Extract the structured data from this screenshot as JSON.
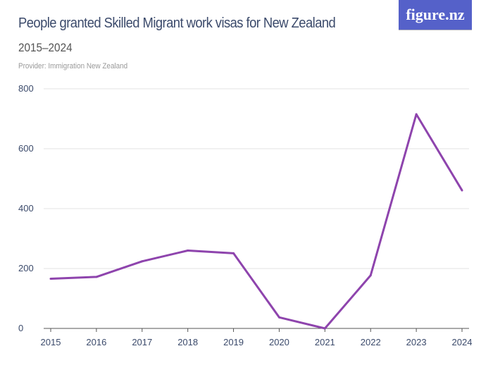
{
  "title": "People granted Skilled Migrant work visas for New Zealand",
  "subtitle": "2015–2024",
  "provider": "Provider: Immigration New Zealand",
  "logo": "figure.nz",
  "chart_data": {
    "type": "line",
    "title": "People granted Skilled Migrant work visas for New Zealand",
    "subtitle": "2015–2024",
    "categories": [
      "2015",
      "2016",
      "2017",
      "2018",
      "2019",
      "2020",
      "2021",
      "2022",
      "2023",
      "2024"
    ],
    "values": [
      166,
      172,
      224,
      260,
      251,
      37,
      0,
      177,
      715,
      461
    ],
    "ylim": [
      0,
      800
    ],
    "yticks": [
      0,
      200,
      400,
      600,
      800
    ],
    "grid": true,
    "line_color": "#8e44ad"
  }
}
